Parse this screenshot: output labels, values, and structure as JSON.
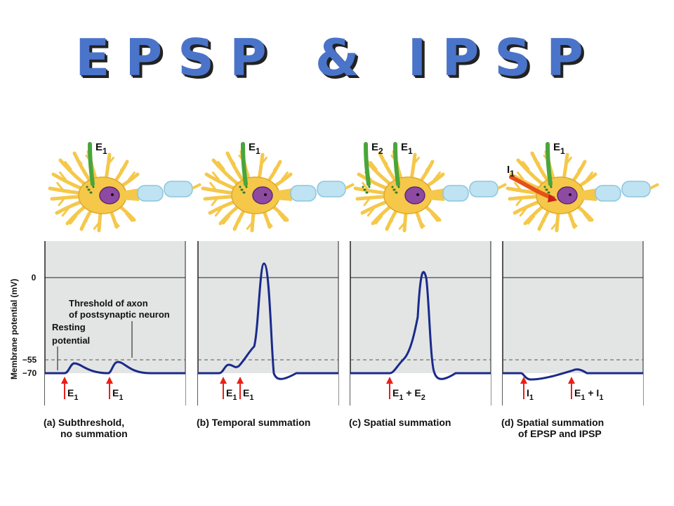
{
  "title": "EPSP & IPSP",
  "y_axis_label": "Membrane potential (mV)",
  "y_ticks": [
    "0",
    "−55",
    "−70"
  ],
  "annotations": {
    "threshold_line1": "Threshold of axon",
    "threshold_line2": "of postsynaptic neuron",
    "resting_line1": "Resting",
    "resting_line2": "potential"
  },
  "panels": [
    {
      "id": "a",
      "caption_line1": "(a) Subthreshold,",
      "caption_line2": "no summation",
      "inputs": [
        {
          "name": "E",
          "sub": "1"
        }
      ],
      "stimuli": [
        {
          "name": "E",
          "sub": "1"
        },
        {
          "name": "E",
          "sub": "1"
        }
      ]
    },
    {
      "id": "b",
      "caption_line1": "(b) Temporal summation",
      "caption_line2": "",
      "inputs": [
        {
          "name": "E",
          "sub": "1"
        }
      ],
      "stimuli": [
        {
          "name": "E",
          "sub": "1"
        },
        {
          "name": "E",
          "sub": "1"
        }
      ]
    },
    {
      "id": "c",
      "caption_line1": "(c) Spatial summation",
      "caption_line2": "",
      "inputs": [
        {
          "name": "E",
          "sub": "2"
        },
        {
          "name": "E",
          "sub": "1"
        }
      ],
      "stimuli": [
        {
          "name": "E",
          "sub": "1",
          "plus": "+ E",
          "sub2": "2"
        }
      ]
    },
    {
      "id": "d",
      "caption_line1": "(d) Spatial summation",
      "caption_line2": "of EPSP and IPSP",
      "inputs": [
        {
          "name": "I",
          "sub": "1"
        },
        {
          "name": "E",
          "sub": "1"
        }
      ],
      "stimuli": [
        {
          "name": "I",
          "sub": "1"
        },
        {
          "name": "E",
          "sub": "1",
          "plus": "+ I",
          "sub2": "1"
        }
      ]
    }
  ],
  "colors": {
    "title": "#4a74c9",
    "plot_bg": "#e2e5e3",
    "trace": "#1a2a8c",
    "arrow": "#e8201a",
    "neuron": "#f5c84a",
    "nucleus": "#8e4aa3",
    "excitatory": "#4aa53a",
    "inhibitory": "#e8501a",
    "myelin": "#bfe3f2"
  }
}
